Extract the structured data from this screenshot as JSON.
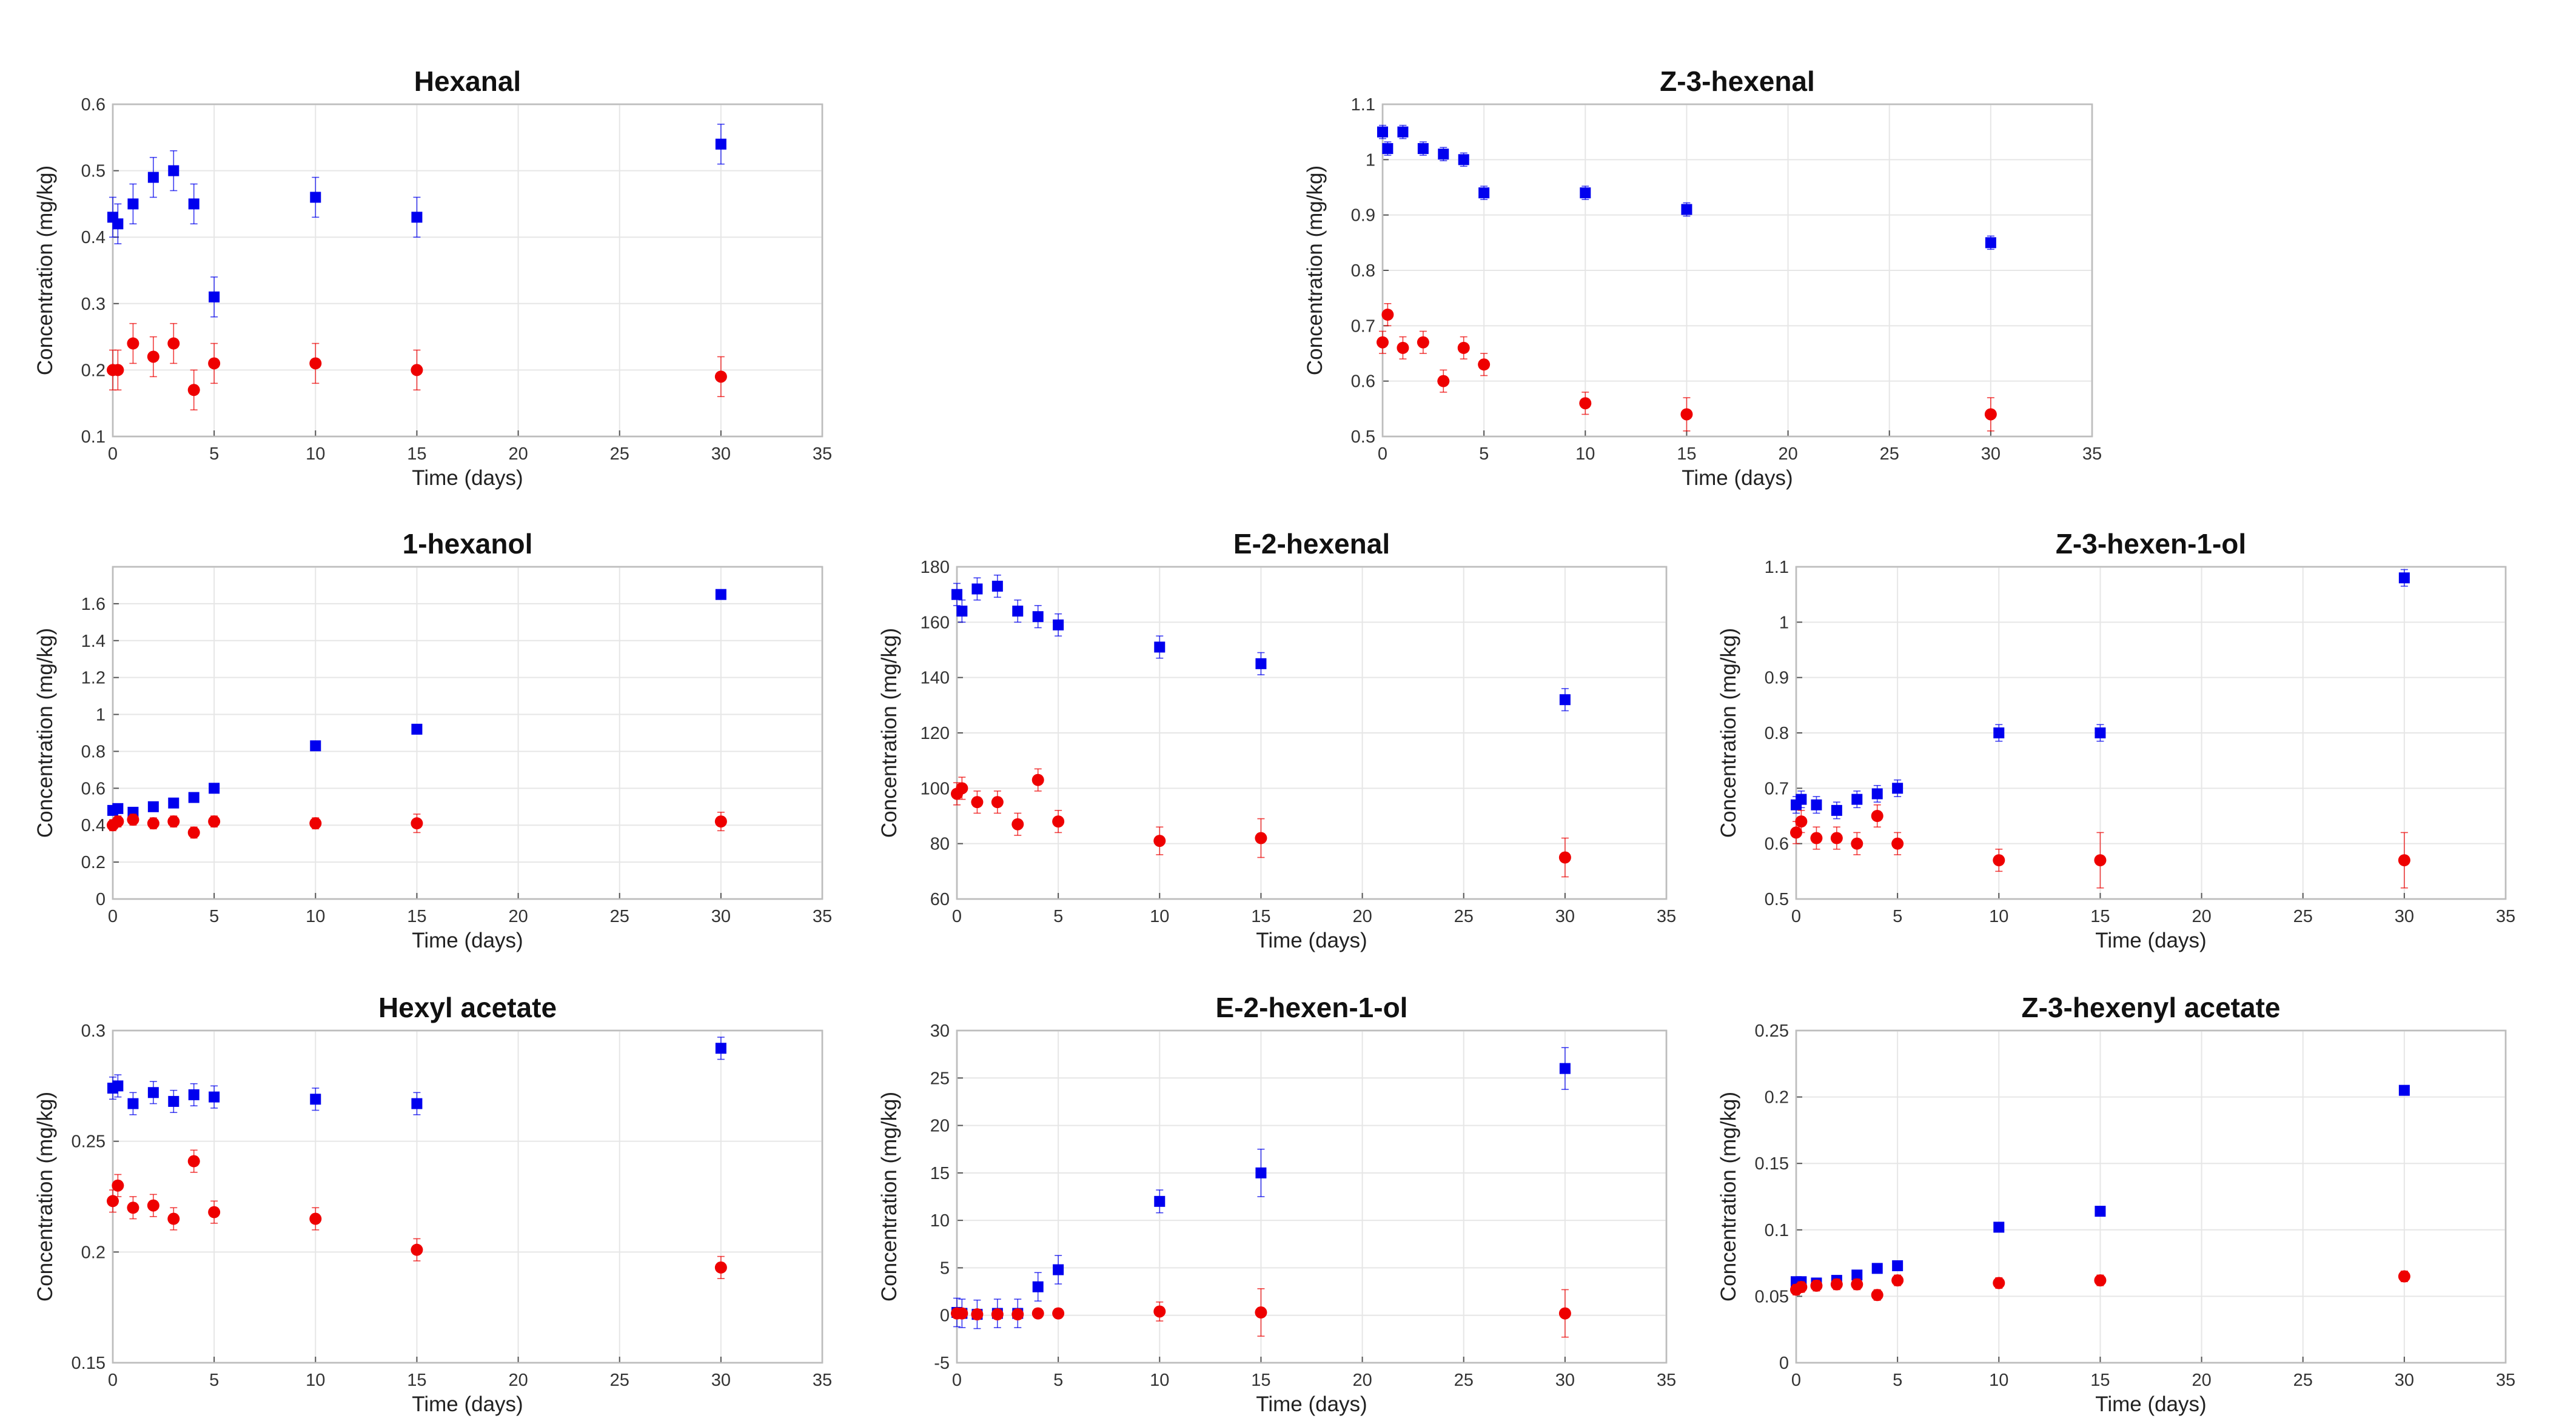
{
  "chart_data": [
    {
      "type": "scatter",
      "title": "Hexanal",
      "xlabel": "Time (days)",
      "ylabel": "Concentration (mg/kg)",
      "xlim": [
        0,
        35
      ],
      "ylim": [
        0.1,
        0.6
      ],
      "xticks": [
        "0",
        "5",
        "10",
        "15",
        "20",
        "25",
        "30",
        "35"
      ],
      "yticks": [
        "0.1",
        "0.2",
        "0.3",
        "0.4",
        "0.5",
        "0.6"
      ],
      "grid": true,
      "x": [
        0,
        0.25,
        1,
        2,
        3,
        4,
        5,
        10,
        15,
        30
      ],
      "series": [
        {
          "marker": "square",
          "color": "#0000ee",
          "values": [
            0.43,
            0.42,
            0.45,
            0.49,
            0.5,
            0.45,
            0.31,
            0.46,
            0.43,
            0.54
          ],
          "errors": [
            0.03,
            0.03,
            0.03,
            0.03,
            0.03,
            0.03,
            0.03,
            0.03,
            0.03,
            0.03
          ]
        },
        {
          "marker": "circle",
          "color": "#ee0000",
          "values": [
            0.2,
            0.2,
            0.24,
            0.22,
            0.24,
            0.17,
            0.21,
            0.21,
            0.2,
            0.19
          ],
          "errors": [
            0.03,
            0.03,
            0.03,
            0.03,
            0.03,
            0.03,
            0.03,
            0.03,
            0.03,
            0.03
          ]
        }
      ]
    },
    {
      "type": "scatter",
      "title": "Z-3-hexenal",
      "xlabel": "Time (days)",
      "ylabel": "Concentration (mg/kg)",
      "xlim": [
        0,
        35
      ],
      "ylim": [
        0.5,
        1.1
      ],
      "xticks": [
        "0",
        "5",
        "10",
        "15",
        "20",
        "25",
        "30",
        "35"
      ],
      "yticks": [
        "0.5",
        "0.6",
        "0.7",
        "0.8",
        "0.9",
        "1",
        "1.1"
      ],
      "grid": true,
      "x": [
        0,
        0.25,
        1,
        2,
        3,
        4,
        5,
        10,
        15,
        30
      ],
      "series": [
        {
          "marker": "square",
          "color": "#0000ee",
          "values": [
            1.05,
            1.02,
            1.05,
            1.02,
            1.01,
            1.0,
            0.94,
            0.94,
            0.91,
            0.85
          ],
          "errors": [
            0.012,
            0.012,
            0.012,
            0.012,
            0.012,
            0.012,
            0.012,
            0.012,
            0.012,
            0.012
          ]
        },
        {
          "marker": "circle",
          "color": "#ee0000",
          "values": [
            0.67,
            0.72,
            0.66,
            0.67,
            0.6,
            0.66,
            0.63,
            0.56,
            0.54,
            0.54
          ],
          "errors": [
            0.02,
            0.02,
            0.02,
            0.02,
            0.02,
            0.02,
            0.02,
            0.02,
            0.03,
            0.03
          ]
        }
      ]
    },
    {
      "type": "scatter",
      "title": "1-hexanol",
      "xlabel": "Time (days)",
      "ylabel": "Concentration (mg/kg)",
      "xlim": [
        0,
        35
      ],
      "ylim": [
        0,
        1.8
      ],
      "xticks": [
        "0",
        "5",
        "10",
        "15",
        "20",
        "25",
        "30",
        "35"
      ],
      "yticks": [
        "0",
        "0.2",
        "0.4",
        "0.6",
        "0.8",
        "1",
        "1.2",
        "1.4",
        "1.6"
      ],
      "grid": true,
      "x": [
        0,
        0.25,
        1,
        2,
        3,
        4,
        5,
        10,
        15,
        30
      ],
      "series": [
        {
          "marker": "square",
          "color": "#0000ee",
          "values": [
            0.48,
            0.49,
            0.47,
            0.5,
            0.52,
            0.55,
            0.6,
            0.83,
            0.92,
            1.65
          ],
          "errors": [
            0.01,
            0.01,
            0.01,
            0.01,
            0.01,
            0.01,
            0.01,
            0.01,
            0.01,
            0.01
          ]
        },
        {
          "marker": "circle",
          "color": "#ee0000",
          "values": [
            0.4,
            0.42,
            0.43,
            0.41,
            0.42,
            0.36,
            0.42,
            0.41,
            0.41,
            0.42
          ],
          "errors": [
            0.03,
            0.03,
            0.03,
            0.03,
            0.03,
            0.03,
            0.03,
            0.03,
            0.05,
            0.05
          ]
        }
      ]
    },
    {
      "type": "scatter",
      "title": "E-2-hexenal",
      "xlabel": "Time (days)",
      "ylabel": "Concentration (mg/kg)",
      "xlim": [
        0,
        35
      ],
      "ylim": [
        60,
        180
      ],
      "xticks": [
        "0",
        "5",
        "10",
        "15",
        "20",
        "25",
        "30",
        "35"
      ],
      "yticks": [
        "60",
        "80",
        "100",
        "120",
        "140",
        "160",
        "180"
      ],
      "grid": true,
      "x": [
        0,
        0.25,
        1,
        2,
        3,
        4,
        5,
        10,
        15,
        30
      ],
      "series": [
        {
          "marker": "square",
          "color": "#0000ee",
          "values": [
            170,
            164,
            172,
            173,
            164,
            162,
            159,
            151,
            145,
            132
          ],
          "errors": [
            4,
            4,
            4,
            4,
            4,
            4,
            4,
            4,
            4,
            4
          ]
        },
        {
          "marker": "circle",
          "color": "#ee0000",
          "values": [
            98,
            100,
            95,
            95,
            87,
            103,
            88,
            81,
            82,
            75
          ],
          "errors": [
            4,
            4,
            4,
            4,
            4,
            4,
            4,
            5,
            7,
            7
          ]
        }
      ]
    },
    {
      "type": "scatter",
      "title": "Z-3-hexen-1-ol",
      "xlabel": "Time (days)",
      "ylabel": "Concentration (mg/kg)",
      "xlim": [
        0,
        35
      ],
      "ylim": [
        0.5,
        1.1
      ],
      "xticks": [
        "0",
        "5",
        "10",
        "15",
        "20",
        "25",
        "30",
        "35"
      ],
      "yticks": [
        "0.5",
        "0.6",
        "0.7",
        "0.8",
        "0.9",
        "1",
        "1.1"
      ],
      "grid": true,
      "x": [
        0,
        0.25,
        1,
        2,
        3,
        4,
        5,
        10,
        15,
        30
      ],
      "series": [
        {
          "marker": "square",
          "color": "#0000ee",
          "values": [
            0.67,
            0.68,
            0.67,
            0.66,
            0.68,
            0.69,
            0.7,
            0.8,
            0.8,
            1.08
          ],
          "errors": [
            0.015,
            0.015,
            0.015,
            0.015,
            0.015,
            0.015,
            0.015,
            0.015,
            0.015,
            0.015
          ]
        },
        {
          "marker": "circle",
          "color": "#ee0000",
          "values": [
            0.62,
            0.64,
            0.61,
            0.61,
            0.6,
            0.65,
            0.6,
            0.57,
            0.57,
            0.57
          ],
          "errors": [
            0.02,
            0.02,
            0.02,
            0.02,
            0.02,
            0.02,
            0.02,
            0.02,
            0.05,
            0.05
          ]
        }
      ]
    },
    {
      "type": "scatter",
      "title": "Hexyl acetate",
      "xlabel": "Time (days)",
      "ylabel": "Concentration (mg/kg)",
      "xlim": [
        0,
        35
      ],
      "ylim": [
        0.15,
        0.3
      ],
      "xticks": [
        "0",
        "5",
        "10",
        "15",
        "20",
        "25",
        "30",
        "35"
      ],
      "yticks": [
        "0.15",
        "0.2",
        "0.25",
        "0.3"
      ],
      "grid": true,
      "x": [
        0,
        0.25,
        1,
        2,
        3,
        4,
        5,
        10,
        15,
        30
      ],
      "series": [
        {
          "marker": "square",
          "color": "#0000ee",
          "values": [
            0.274,
            0.275,
            0.267,
            0.272,
            0.268,
            0.271,
            0.27,
            0.269,
            0.267,
            0.292
          ],
          "errors": [
            0.005,
            0.005,
            0.005,
            0.005,
            0.005,
            0.005,
            0.005,
            0.005,
            0.005,
            0.005
          ]
        },
        {
          "marker": "circle",
          "color": "#ee0000",
          "values": [
            0.223,
            0.23,
            0.22,
            0.221,
            0.215,
            0.241,
            0.218,
            0.215,
            0.201,
            0.193
          ],
          "errors": [
            0.005,
            0.005,
            0.005,
            0.005,
            0.005,
            0.005,
            0.005,
            0.005,
            0.005,
            0.005
          ]
        }
      ]
    },
    {
      "type": "scatter",
      "title": "E-2-hexen-1-ol",
      "xlabel": "Time (days)",
      "ylabel": "Concentration (mg/kg)",
      "xlim": [
        0,
        35
      ],
      "ylim": [
        -5,
        30
      ],
      "xticks": [
        "0",
        "5",
        "10",
        "15",
        "20",
        "25",
        "30",
        "35"
      ],
      "yticks": [
        "-5",
        "0",
        "5",
        "10",
        "15",
        "20",
        "25",
        "30"
      ],
      "grid": true,
      "x": [
        0,
        0.25,
        1,
        2,
        3,
        4,
        5,
        10,
        15,
        30
      ],
      "series": [
        {
          "marker": "square",
          "color": "#0000ee",
          "values": [
            0.3,
            0.2,
            0.1,
            0.2,
            0.2,
            3.0,
            4.8,
            12.0,
            15.0,
            26.0
          ],
          "errors": [
            1.5,
            1.5,
            1.5,
            1.5,
            1.5,
            1.5,
            1.5,
            1.2,
            2.5,
            2.2
          ]
        },
        {
          "marker": "circle",
          "color": "#ee0000",
          "values": [
            0.2,
            0.2,
            0.1,
            0.1,
            0.1,
            0.2,
            0.2,
            0.4,
            0.3,
            0.2
          ],
          "errors": [
            0.5,
            0.5,
            0.5,
            0.5,
            0.5,
            0.5,
            0.5,
            1.0,
            2.5,
            2.5
          ]
        }
      ]
    },
    {
      "type": "scatter",
      "title": "Z-3-hexenyl acetate",
      "xlabel": "Time (days)",
      "ylabel": "Concentration (mg/kg)",
      "xlim": [
        0,
        35
      ],
      "ylim": [
        0,
        0.25
      ],
      "xticks": [
        "0",
        "5",
        "10",
        "15",
        "20",
        "25",
        "30",
        "35"
      ],
      "yticks": [
        "0",
        "0.05",
        "0.1",
        "0.15",
        "0.2",
        "0.25"
      ],
      "grid": true,
      "x": [
        0,
        0.25,
        1,
        2,
        3,
        4,
        5,
        10,
        15,
        30
      ],
      "series": [
        {
          "marker": "square",
          "color": "#0000ee",
          "values": [
            0.061,
            0.061,
            0.06,
            0.062,
            0.066,
            0.071,
            0.073,
            0.102,
            0.114,
            0.205
          ],
          "errors": [
            0.002,
            0.002,
            0.002,
            0.002,
            0.002,
            0.002,
            0.002,
            0.002,
            0.002,
            0.002
          ]
        },
        {
          "marker": "circle",
          "color": "#ee0000",
          "values": [
            0.055,
            0.057,
            0.058,
            0.059,
            0.059,
            0.051,
            0.062,
            0.06,
            0.062,
            0.065
          ],
          "errors": [
            0.004,
            0.004,
            0.004,
            0.004,
            0.004,
            0.004,
            0.004,
            0.004,
            0.004,
            0.004
          ]
        }
      ]
    }
  ]
}
